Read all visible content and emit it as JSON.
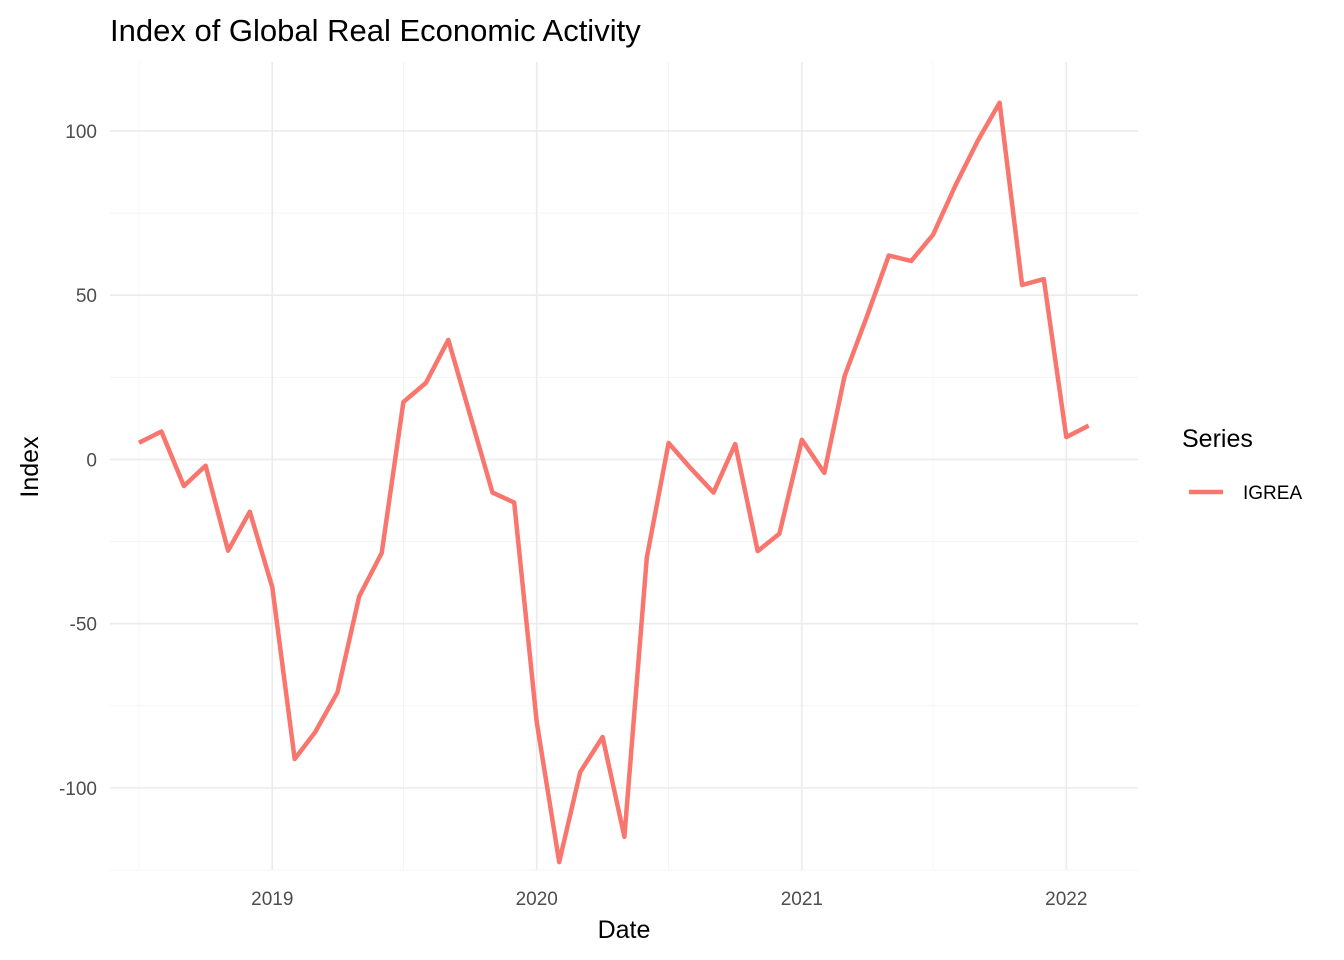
{
  "chart_data": {
    "type": "line",
    "title": "Index of Global Real Economic Activity",
    "xlabel": "Date",
    "ylabel": "Index",
    "legend": {
      "title": "Series",
      "position": "right"
    },
    "grid": true,
    "xlim": [
      "2018-05-22",
      "2022-04-10"
    ],
    "ylim": [
      -125,
      121
    ],
    "x_ticks": [
      "2019-01-01",
      "2020-01-01",
      "2021-01-01",
      "2022-01-01"
    ],
    "x_tick_labels": [
      "2019",
      "2020",
      "2021",
      "2022"
    ],
    "y_ticks": [
      -100,
      -50,
      0,
      50,
      100
    ],
    "y_tick_labels": [
      "-100",
      "-50",
      "0",
      "50",
      "100"
    ],
    "series": [
      {
        "name": "IGREA",
        "color": "#F8766D",
        "x": [
          "2018-07-01",
          "2018-08-01",
          "2018-09-01",
          "2018-10-01",
          "2018-11-01",
          "2018-12-01",
          "2019-01-01",
          "2019-02-01",
          "2019-03-01",
          "2019-04-01",
          "2019-05-01",
          "2019-06-01",
          "2019-07-01",
          "2019-08-01",
          "2019-09-01",
          "2019-10-01",
          "2019-11-01",
          "2019-12-01",
          "2020-01-01",
          "2020-02-01",
          "2020-03-01",
          "2020-04-01",
          "2020-05-01",
          "2020-06-01",
          "2020-07-01",
          "2020-08-01",
          "2020-09-01",
          "2020-10-01",
          "2020-11-01",
          "2020-12-01",
          "2021-01-01",
          "2021-02-01",
          "2021-03-01",
          "2021-04-01",
          "2021-05-01",
          "2021-06-01",
          "2021-07-01",
          "2021-08-01",
          "2021-09-01",
          "2021-10-01",
          "2021-11-01",
          "2021-12-01",
          "2022-01-01",
          "2022-02-01"
        ],
        "values": [
          5.1,
          8.5,
          -8.1,
          -1.9,
          -27.8,
          -15.9,
          -38.9,
          -91.2,
          -83.1,
          -70.9,
          -41.7,
          -28.5,
          17.5,
          23.3,
          36.4,
          13.5,
          -10.1,
          -13.1,
          -79.9,
          -122.6,
          -95.2,
          -84.5,
          -114.9,
          -29.9,
          5.0,
          -2.8,
          -10.1,
          4.7,
          -27.9,
          -22.6,
          6.0,
          -4.1,
          25.4,
          43.7,
          62.1,
          60.4,
          68.4,
          83.4,
          97.1,
          108.6,
          53.1,
          54.9,
          6.8,
          10.3
        ]
      }
    ]
  }
}
